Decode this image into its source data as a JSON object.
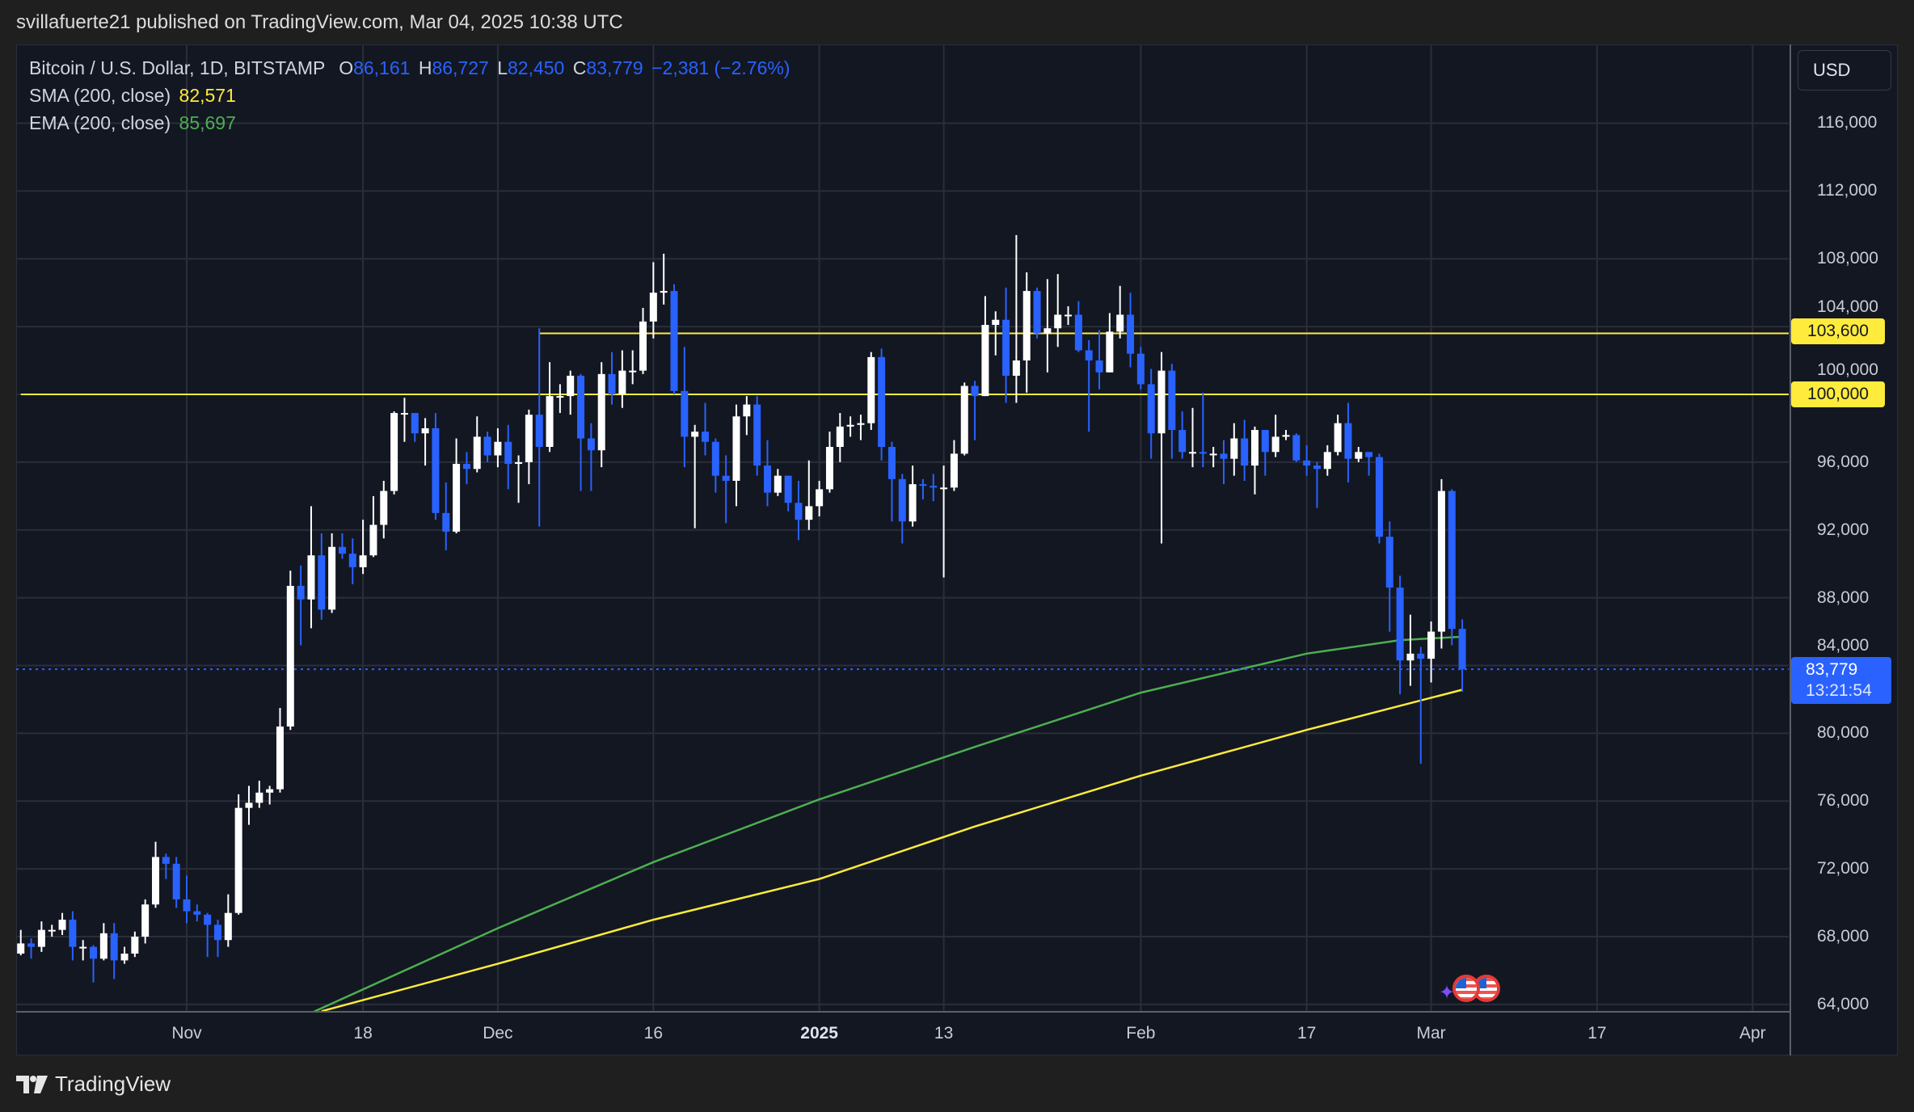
{
  "header": {
    "published": "svillafuerte21 published on TradingView.com, Mar 04, 2025 10:38 UTC"
  },
  "legend": {
    "symbol": "Bitcoin / U.S. Dollar, 1D, BITSTAMP",
    "o_label": "O",
    "o": "86,161",
    "h_label": "H",
    "h": "86,727",
    "l_label": "L",
    "l": "82,450",
    "c_label": "C",
    "c": "83,779",
    "change": "−2,381 (−2.76%)",
    "sma_label": "SMA (200, close)",
    "sma_value": "82,571",
    "ema_label": "EMA (200, close)",
    "ema_value": "85,697"
  },
  "price_axis": {
    "currency": "USD",
    "current_price": "83,779",
    "countdown": "13:21:54",
    "levels": [
      "103,600",
      "100,000"
    ]
  },
  "footer": {
    "brand": "TradingView"
  },
  "colors": {
    "up": "#ffffff",
    "down": "#2962ff",
    "sma": "#ffeb3b",
    "ema": "#4caf50",
    "level": "#ffeb3b",
    "background": "#131722",
    "grid": "#2a2e39"
  },
  "icons": [
    "tradingview-logo-icon",
    "us-flag-event-icon",
    "sparkle-icon"
  ],
  "chart_data": {
    "type": "candlestick",
    "title": "Bitcoin / U.S. Dollar, 1D, BITSTAMP",
    "ylim": [
      62500,
      119000
    ],
    "grid": true,
    "y_ticks": [
      64000,
      68000,
      72000,
      76000,
      80000,
      84000,
      88000,
      92000,
      96000,
      100000,
      104000,
      108000,
      112000,
      116000
    ],
    "y_tick_labels": [
      "64,000",
      "68,000",
      "72,000",
      "76,000",
      "80,000",
      "84,000",
      "88,000",
      "92,000",
      "96,000",
      "100,000",
      "104,000",
      "108,000",
      "112,000",
      "116,000"
    ],
    "x_ticks": [
      {
        "date": "2024-11-01",
        "label": "Nov"
      },
      {
        "date": "2024-11-18",
        "label": "18"
      },
      {
        "date": "2024-12-01",
        "label": "Dec"
      },
      {
        "date": "2024-12-16",
        "label": "16"
      },
      {
        "date": "2025-01-01",
        "label": "2025"
      },
      {
        "date": "2025-01-13",
        "label": "13"
      },
      {
        "date": "2025-02-01",
        "label": "Feb"
      },
      {
        "date": "2025-02-17",
        "label": "17"
      },
      {
        "date": "2025-03-01",
        "label": "Mar"
      },
      {
        "date": "2025-03-17",
        "label": "17"
      },
      {
        "date": "2025-04-01",
        "label": "Apr"
      }
    ],
    "horizontal_levels": [
      {
        "value": 103600,
        "from": "2024-12-05"
      },
      {
        "value": 100000,
        "from": "2024-10-16"
      }
    ],
    "current_price": 83779,
    "series": [
      {
        "name": "SMA (200, close)",
        "points": [
          [
            "2024-11-14",
            63600
          ],
          [
            "2024-12-01",
            66400
          ],
          [
            "2024-12-16",
            69000
          ],
          [
            "2025-01-01",
            71400
          ],
          [
            "2025-01-16",
            74500
          ],
          [
            "2025-02-01",
            77500
          ],
          [
            "2025-02-17",
            80200
          ],
          [
            "2025-03-04",
            82571
          ]
        ]
      },
      {
        "name": "EMA (200, close)",
        "points": [
          [
            "2024-11-13",
            63500
          ],
          [
            "2024-12-01",
            68500
          ],
          [
            "2024-12-16",
            72400
          ],
          [
            "2025-01-01",
            76100
          ],
          [
            "2025-01-16",
            79200
          ],
          [
            "2025-02-01",
            82400
          ],
          [
            "2025-02-17",
            84700
          ],
          [
            "2025-02-26",
            85500
          ],
          [
            "2025-03-04",
            85697
          ]
        ]
      }
    ],
    "candles_columns": [
      "date",
      "open",
      "high",
      "low",
      "close"
    ],
    "candles": [
      [
        "2024-10-16",
        67000,
        68400,
        66900,
        67600
      ],
      [
        "2024-10-17",
        67600,
        67900,
        66700,
        67400
      ],
      [
        "2024-10-18",
        67400,
        68900,
        67100,
        68400
      ],
      [
        "2024-10-19",
        68400,
        68700,
        68000,
        68400
      ],
      [
        "2024-10-20",
        68400,
        69400,
        68100,
        69000
      ],
      [
        "2024-10-21",
        69000,
        69500,
        66600,
        67400
      ],
      [
        "2024-10-22",
        67400,
        67800,
        66600,
        67400
      ],
      [
        "2024-10-23",
        67400,
        67500,
        65300,
        66700
      ],
      [
        "2024-10-24",
        66700,
        68800,
        66600,
        68200
      ],
      [
        "2024-10-25",
        68200,
        68800,
        65500,
        66600
      ],
      [
        "2024-10-26",
        66600,
        67400,
        66400,
        67000
      ],
      [
        "2024-10-27",
        67000,
        68300,
        66800,
        68000
      ],
      [
        "2024-10-28",
        68000,
        70200,
        67600,
        69900
      ],
      [
        "2024-10-29",
        69900,
        73600,
        69700,
        72700
      ],
      [
        "2024-10-30",
        72700,
        72900,
        71400,
        72300
      ],
      [
        "2024-10-31",
        72300,
        72700,
        69700,
        70200
      ],
      [
        "2024-11-01",
        70200,
        71600,
        68800,
        69500
      ],
      [
        "2024-11-02",
        69500,
        69900,
        68900,
        69300
      ],
      [
        "2024-11-03",
        69300,
        69400,
        66800,
        68700
      ],
      [
        "2024-11-04",
        68700,
        69000,
        66800,
        67800
      ],
      [
        "2024-11-05",
        67800,
        70500,
        67400,
        69400
      ],
      [
        "2024-11-06",
        69400,
        76400,
        69300,
        75600
      ],
      [
        "2024-11-07",
        75600,
        76900,
        74600,
        75900
      ],
      [
        "2024-11-08",
        75900,
        77200,
        75600,
        76500
      ],
      [
        "2024-11-09",
        76500,
        76900,
        75800,
        76700
      ],
      [
        "2024-11-10",
        76700,
        81500,
        76500,
        80400
      ],
      [
        "2024-11-11",
        80400,
        89600,
        80200,
        88700
      ],
      [
        "2024-11-12",
        88700,
        89900,
        85200,
        87900
      ],
      [
        "2024-11-13",
        87900,
        93400,
        86200,
        90500
      ],
      [
        "2024-11-14",
        90500,
        91800,
        86700,
        87300
      ],
      [
        "2024-11-15",
        87300,
        91800,
        87100,
        91000
      ],
      [
        "2024-11-16",
        91000,
        91800,
        90300,
        90600
      ],
      [
        "2024-11-17",
        90600,
        91500,
        88800,
        89800
      ],
      [
        "2024-11-18",
        89800,
        92600,
        89400,
        90500
      ],
      [
        "2024-11-19",
        90500,
        94000,
        90400,
        92300
      ],
      [
        "2024-11-20",
        92300,
        94900,
        91500,
        94300
      ],
      [
        "2024-11-21",
        94300,
        99000,
        94100,
        98900
      ],
      [
        "2024-11-22",
        98900,
        99800,
        97200,
        98900
      ],
      [
        "2024-11-23",
        98900,
        98800,
        97200,
        97700
      ],
      [
        "2024-11-24",
        97700,
        98600,
        95800,
        98000
      ],
      [
        "2024-11-25",
        98000,
        98900,
        92600,
        93000
      ],
      [
        "2024-11-26",
        93000,
        94800,
        90800,
        91900
      ],
      [
        "2024-11-27",
        91900,
        97400,
        91800,
        95900
      ],
      [
        "2024-11-28",
        95900,
        96600,
        94700,
        95600
      ],
      [
        "2024-11-29",
        95600,
        98700,
        95400,
        97500
      ],
      [
        "2024-11-30",
        97500,
        97800,
        96000,
        96400
      ],
      [
        "2024-12-01",
        96400,
        98000,
        95700,
        97200
      ],
      [
        "2024-12-02",
        97200,
        98200,
        94400,
        95900
      ],
      [
        "2024-12-03",
        95900,
        96400,
        93600,
        96000
      ],
      [
        "2024-12-04",
        96000,
        99100,
        94700,
        98800
      ],
      [
        "2024-12-05",
        98800,
        103900,
        92200,
        96900
      ],
      [
        "2024-12-06",
        96900,
        101900,
        96600,
        99900
      ],
      [
        "2024-12-07",
        99900,
        100600,
        98900,
        99900
      ],
      [
        "2024-12-08",
        99900,
        101400,
        98800,
        101100
      ],
      [
        "2024-12-09",
        101100,
        101200,
        94300,
        97400
      ],
      [
        "2024-12-10",
        97400,
        98300,
        94300,
        96700
      ],
      [
        "2024-12-11",
        96700,
        101900,
        95700,
        101200
      ],
      [
        "2024-12-12",
        101200,
        102500,
        99400,
        100000
      ],
      [
        "2024-12-13",
        100000,
        102600,
        99200,
        101400
      ],
      [
        "2024-12-14",
        101400,
        102600,
        100600,
        101400
      ],
      [
        "2024-12-15",
        101400,
        105100,
        101200,
        104300
      ],
      [
        "2024-12-16",
        104300,
        107800,
        103300,
        106000
      ],
      [
        "2024-12-17",
        106000,
        108300,
        105300,
        106100
      ],
      [
        "2024-12-18",
        106100,
        106500,
        100000,
        100200
      ],
      [
        "2024-12-19",
        100200,
        102800,
        95700,
        97500
      ],
      [
        "2024-12-20",
        97500,
        98200,
        92100,
        97800
      ],
      [
        "2024-12-21",
        97800,
        99500,
        96400,
        97200
      ],
      [
        "2024-12-22",
        97200,
        97400,
        94200,
        95200
      ],
      [
        "2024-12-23",
        95200,
        96400,
        92400,
        94900
      ],
      [
        "2024-12-24",
        94900,
        99400,
        93400,
        98700
      ],
      [
        "2024-12-25",
        98700,
        99900,
        97600,
        99400
      ],
      [
        "2024-12-26",
        99400,
        99900,
        95200,
        95800
      ],
      [
        "2024-12-27",
        95800,
        97300,
        93400,
        94200
      ],
      [
        "2024-12-28",
        94200,
        95600,
        94000,
        95200
      ],
      [
        "2024-12-29",
        95200,
        95200,
        93100,
        93600
      ],
      [
        "2024-12-30",
        93600,
        94900,
        91400,
        92600
      ],
      [
        "2024-12-31",
        92600,
        96100,
        92000,
        93400
      ],
      [
        "2025-01-01",
        93400,
        94900,
        92800,
        94400
      ],
      [
        "2025-01-02",
        94400,
        97800,
        94200,
        96900
      ],
      [
        "2025-01-03",
        96900,
        98900,
        96000,
        98100
      ],
      [
        "2025-01-04",
        98100,
        98700,
        97500,
        98200
      ],
      [
        "2025-01-05",
        98200,
        98800,
        97300,
        98300
      ],
      [
        "2025-01-06",
        98300,
        102500,
        97900,
        102200
      ],
      [
        "2025-01-07",
        102200,
        102700,
        96100,
        96900
      ],
      [
        "2025-01-08",
        96900,
        97200,
        92500,
        95000
      ],
      [
        "2025-01-09",
        95000,
        95300,
        91200,
        92500
      ],
      [
        "2025-01-10",
        92500,
        95800,
        92200,
        94700
      ],
      [
        "2025-01-11",
        94700,
        95000,
        93800,
        94600
      ],
      [
        "2025-01-12",
        94600,
        95300,
        93700,
        94500
      ],
      [
        "2025-01-13",
        94500,
        95800,
        89200,
        94500
      ],
      [
        "2025-01-14",
        94500,
        97300,
        94300,
        96500
      ],
      [
        "2025-01-15",
        96500,
        100700,
        96400,
        100500
      ],
      [
        "2025-01-16",
        100500,
        100800,
        97300,
        99900
      ],
      [
        "2025-01-17",
        99900,
        105800,
        99900,
        104100
      ],
      [
        "2025-01-18",
        104100,
        104900,
        102300,
        104400
      ],
      [
        "2025-01-19",
        104400,
        106300,
        99500,
        101100
      ],
      [
        "2025-01-20",
        101100,
        109400,
        99500,
        102000
      ],
      [
        "2025-01-21",
        102000,
        107200,
        100100,
        106100
      ],
      [
        "2025-01-22",
        106100,
        106300,
        103300,
        103600
      ],
      [
        "2025-01-23",
        103600,
        106800,
        101300,
        103900
      ],
      [
        "2025-01-24",
        103900,
        107100,
        102800,
        104700
      ],
      [
        "2025-01-25",
        104700,
        105200,
        104100,
        104700
      ],
      [
        "2025-01-26",
        104700,
        105500,
        102500,
        102600
      ],
      [
        "2025-01-27",
        102600,
        103200,
        97800,
        102000
      ],
      [
        "2025-01-28",
        102000,
        103800,
        100300,
        101300
      ],
      [
        "2025-01-29",
        101300,
        104800,
        101300,
        103700
      ],
      [
        "2025-01-30",
        103700,
        106400,
        103300,
        104700
      ],
      [
        "2025-01-31",
        104700,
        106000,
        101600,
        102400
      ],
      [
        "2025-02-01",
        102400,
        102800,
        100300,
        100600
      ],
      [
        "2025-02-02",
        100600,
        101500,
        96200,
        97700
      ],
      [
        "2025-02-03",
        97700,
        102500,
        91200,
        101400
      ],
      [
        "2025-02-04",
        101400,
        101800,
        96200,
        97900
      ],
      [
        "2025-02-05",
        97900,
        99000,
        96200,
        96600
      ],
      [
        "2025-02-06",
        96600,
        99200,
        95700,
        96600
      ],
      [
        "2025-02-07",
        96600,
        100100,
        95700,
        96500
      ],
      [
        "2025-02-08",
        96500,
        96900,
        95700,
        96500
      ],
      [
        "2025-02-09",
        96500,
        97300,
        94700,
        96200
      ],
      [
        "2025-02-10",
        96200,
        98300,
        95200,
        97400
      ],
      [
        "2025-02-11",
        97400,
        98500,
        94900,
        95800
      ],
      [
        "2025-02-12",
        95800,
        98100,
        94100,
        97900
      ],
      [
        "2025-02-13",
        97900,
        97900,
        95200,
        96600
      ],
      [
        "2025-02-14",
        96600,
        98800,
        96300,
        97500
      ],
      [
        "2025-02-15",
        97500,
        97900,
        97300,
        97600
      ],
      [
        "2025-02-16",
        97600,
        97700,
        96000,
        96100
      ],
      [
        "2025-02-17",
        96100,
        97000,
        95200,
        95800
      ],
      [
        "2025-02-18",
        95800,
        96000,
        93300,
        95600
      ],
      [
        "2025-02-19",
        95600,
        97000,
        95200,
        96600
      ],
      [
        "2025-02-20",
        96600,
        98800,
        96400,
        98300
      ],
      [
        "2025-02-21",
        98300,
        99500,
        94800,
        96200
      ],
      [
        "2025-02-22",
        96200,
        96900,
        96000,
        96600
      ],
      [
        "2025-02-23",
        96600,
        96600,
        95200,
        96300
      ],
      [
        "2025-02-24",
        96300,
        96500,
        91200,
        91600
      ],
      [
        "2025-02-25",
        91600,
        92500,
        86000,
        88600
      ],
      [
        "2025-02-26",
        88600,
        89300,
        82300,
        84300
      ],
      [
        "2025-02-27",
        84300,
        87000,
        82800,
        84700
      ],
      [
        "2025-02-28",
        84700,
        85100,
        78200,
        84400
      ],
      [
        "2025-03-01",
        84400,
        86600,
        83000,
        86000
      ],
      [
        "2025-03-02",
        86000,
        95000,
        85000,
        94300
      ],
      [
        "2025-03-03",
        94300,
        94400,
        85200,
        86161
      ],
      [
        "2025-03-04",
        86161,
        86727,
        82450,
        83779
      ]
    ]
  }
}
